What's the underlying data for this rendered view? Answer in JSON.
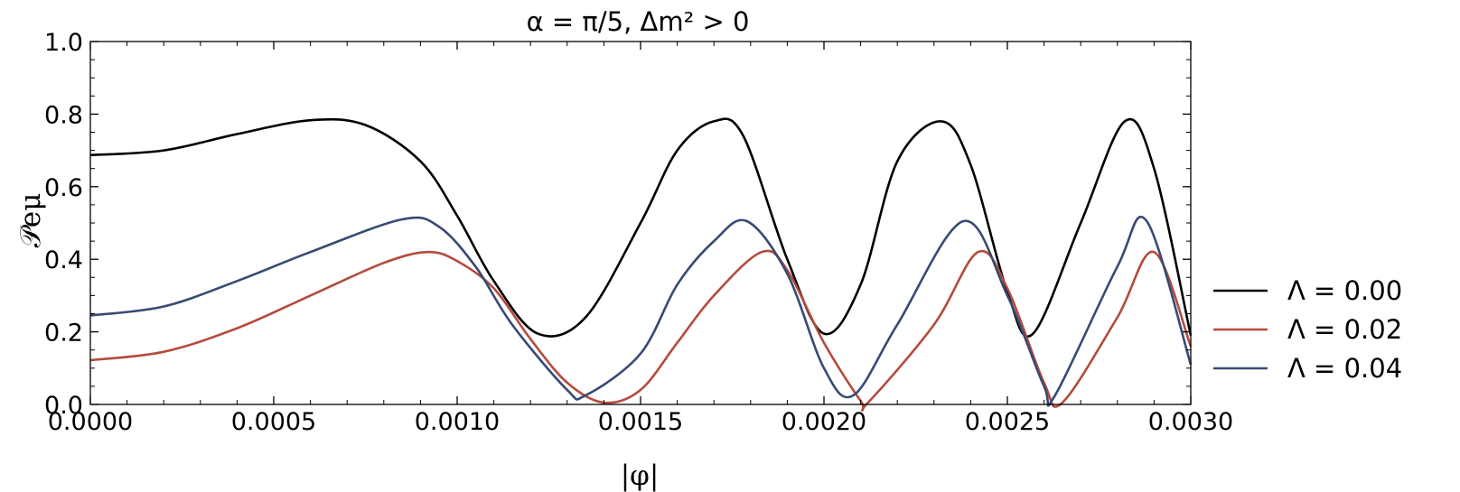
{
  "chart_data": {
    "type": "line",
    "title": "α = π/5, Δm² > 0",
    "xlabel": "|φ|",
    "ylabel": "𝒫eμ",
    "xlim": [
      0,
      0.003
    ],
    "ylim": [
      0,
      1.0
    ],
    "grid": false,
    "legend_position": "right",
    "x_ticks": [
      "0.0000",
      "0.0005",
      "0.0010",
      "0.0015",
      "0.0020",
      "0.0025",
      "0.0030"
    ],
    "y_ticks": [
      "0.0",
      "0.2",
      "0.4",
      "0.6",
      "0.8",
      "1.0"
    ],
    "series": [
      {
        "name": "Λ = 0.00",
        "color": "#000000",
        "points": [
          [
            0,
            0.687
          ],
          [
            0.0002,
            0.7
          ],
          [
            0.0004,
            0.745
          ],
          [
            0.0006,
            0.783
          ],
          [
            0.00075,
            0.77
          ],
          [
            0.0009,
            0.67
          ],
          [
            0.001,
            0.52
          ],
          [
            0.0011,
            0.34
          ],
          [
            0.00122,
            0.195
          ],
          [
            0.00135,
            0.24
          ],
          [
            0.0015,
            0.5
          ],
          [
            0.0016,
            0.7
          ],
          [
            0.0017,
            0.78
          ],
          [
            0.00178,
            0.74
          ],
          [
            0.0019,
            0.4
          ],
          [
            0.002,
            0.195
          ],
          [
            0.0021,
            0.33
          ],
          [
            0.0022,
            0.67
          ],
          [
            0.00232,
            0.78
          ],
          [
            0.0024,
            0.66
          ],
          [
            0.0025,
            0.31
          ],
          [
            0.00257,
            0.195
          ],
          [
            0.0027,
            0.5
          ],
          [
            0.00282,
            0.78
          ],
          [
            0.0029,
            0.65
          ],
          [
            0.003,
            0.19
          ]
        ]
      },
      {
        "name": "Λ = 0.02",
        "color": "#b44b3c",
        "points": [
          [
            0,
            0.122
          ],
          [
            0.0002,
            0.145
          ],
          [
            0.0004,
            0.21
          ],
          [
            0.0006,
            0.3
          ],
          [
            0.0008,
            0.39
          ],
          [
            0.00092,
            0.42
          ],
          [
            0.001,
            0.395
          ],
          [
            0.0011,
            0.32
          ],
          [
            0.0012,
            0.18
          ],
          [
            0.0013,
            0.06
          ],
          [
            0.0014,
            0.005
          ],
          [
            0.0015,
            0.04
          ],
          [
            0.0016,
            0.17
          ],
          [
            0.0017,
            0.3
          ],
          [
            0.00183,
            0.42
          ],
          [
            0.0019,
            0.37
          ],
          [
            0.002,
            0.17
          ],
          [
            0.0021,
            0.01
          ],
          [
            0.00212,
            0.005
          ],
          [
            0.0023,
            0.22
          ],
          [
            0.00242,
            0.42
          ],
          [
            0.0025,
            0.32
          ],
          [
            0.0026,
            0.06
          ],
          [
            0.00265,
            0.005
          ],
          [
            0.0028,
            0.24
          ],
          [
            0.0029,
            0.42
          ],
          [
            0.003,
            0.16
          ]
        ]
      },
      {
        "name": "Λ = 0.04",
        "color": "#374a73",
        "points": [
          [
            0,
            0.245
          ],
          [
            0.0002,
            0.27
          ],
          [
            0.0004,
            0.34
          ],
          [
            0.0006,
            0.42
          ],
          [
            0.00085,
            0.51
          ],
          [
            0.00095,
            0.49
          ],
          [
            0.00105,
            0.38
          ],
          [
            0.00115,
            0.22
          ],
          [
            0.0013,
            0.04
          ],
          [
            0.00135,
            0.025
          ],
          [
            0.0015,
            0.14
          ],
          [
            0.0016,
            0.33
          ],
          [
            0.0017,
            0.45
          ],
          [
            0.00179,
            0.505
          ],
          [
            0.0019,
            0.36
          ],
          [
            0.002,
            0.1
          ],
          [
            0.00208,
            0.025
          ],
          [
            0.0022,
            0.22
          ],
          [
            0.00238,
            0.505
          ],
          [
            0.0025,
            0.3
          ],
          [
            0.0026,
            0.05
          ],
          [
            0.00263,
            0.025
          ],
          [
            0.0028,
            0.38
          ],
          [
            0.00288,
            0.505
          ],
          [
            0.003,
            0.11
          ]
        ]
      }
    ]
  }
}
